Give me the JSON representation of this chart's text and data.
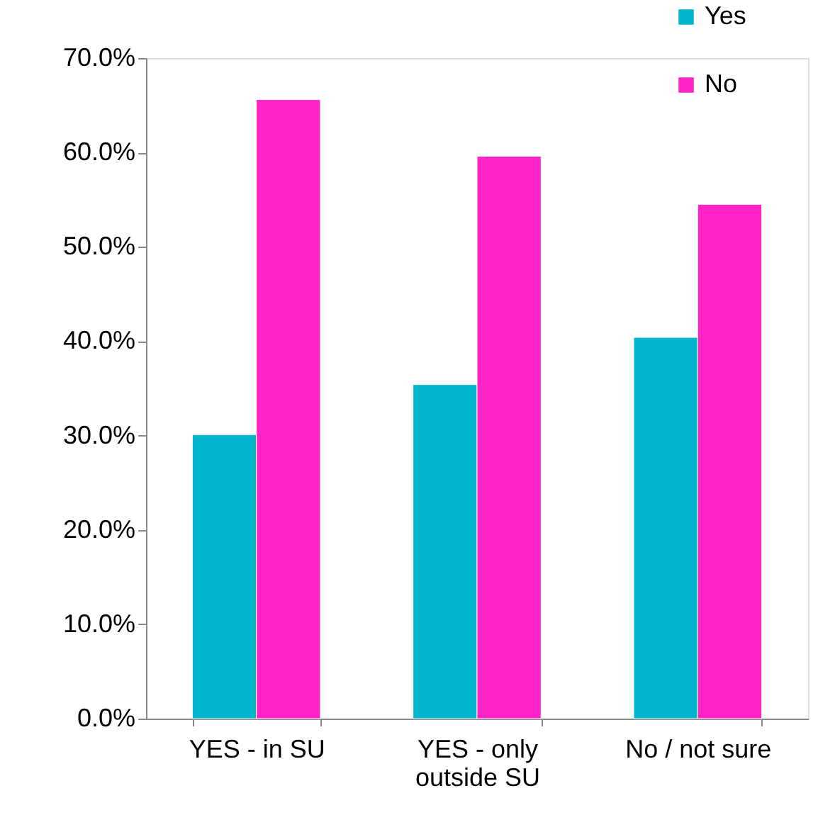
{
  "chart_data": {
    "type": "bar",
    "categories": [
      "YES - in SU",
      "YES - only outside SU",
      "No / not sure"
    ],
    "series": [
      {
        "name": "Yes",
        "color": "#00b5cc",
        "values": [
          30.1,
          35.4,
          40.4
        ]
      },
      {
        "name": "No",
        "color": "#ff22c6",
        "values": [
          65.6,
          59.6,
          54.5
        ]
      }
    ],
    "ylim": [
      0,
      70
    ],
    "yticks": [
      {
        "value": 0,
        "label": "0.0%"
      },
      {
        "value": 10,
        "label": "10.0%"
      },
      {
        "value": 20,
        "label": "20.0%"
      },
      {
        "value": 30,
        "label": "30.0%"
      },
      {
        "value": 40,
        "label": "40.0%"
      },
      {
        "value": 50,
        "label": "50.0%"
      },
      {
        "value": 60,
        "label": "60.0%"
      },
      {
        "value": 70,
        "label": "70.0%"
      }
    ],
    "grid": false,
    "legend": "top right"
  }
}
